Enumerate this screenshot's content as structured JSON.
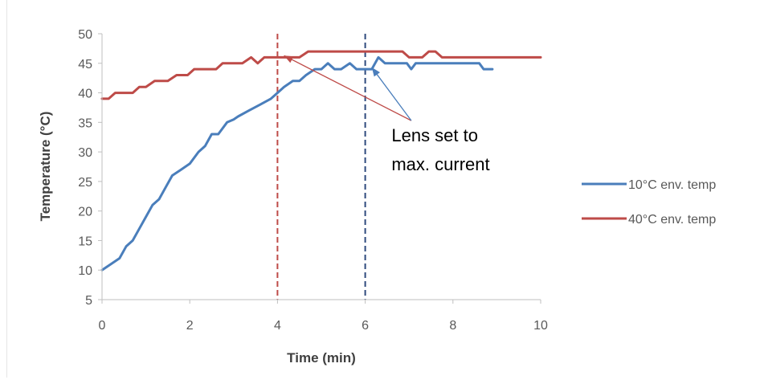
{
  "chart_data": {
    "type": "line",
    "title": "",
    "xlabel": "Time (min)",
    "ylabel": "Temperature (°C)",
    "xlim": [
      0,
      10
    ],
    "ylim": [
      5,
      50
    ],
    "x_ticks": [
      "0",
      "2",
      "4",
      "6",
      "8",
      "10"
    ],
    "y_ticks": [
      "5",
      "10",
      "15",
      "20",
      "25",
      "30",
      "35",
      "40",
      "45",
      "50"
    ],
    "grid": false,
    "legend_position": "right",
    "series": [
      {
        "name": "10°C env. temp",
        "color": "#4a7ebb",
        "x": [
          0,
          0.2,
          0.4,
          0.55,
          0.7,
          0.85,
          1.0,
          1.15,
          1.3,
          1.45,
          1.6,
          1.8,
          2.0,
          2.2,
          2.35,
          2.5,
          2.65,
          2.85,
          3.0,
          3.1,
          3.35,
          3.6,
          3.85,
          4.0,
          4.15,
          4.35,
          4.5,
          4.65,
          4.85,
          5.0,
          5.15,
          5.3,
          5.45,
          5.65,
          5.8,
          5.95,
          6.15,
          6.3,
          6.45,
          6.6,
          6.8,
          6.95,
          7.05,
          7.15,
          7.3,
          7.5,
          8.0,
          8.5,
          8.6,
          8.7,
          8.9
        ],
        "y": [
          10,
          11,
          12,
          14,
          15,
          17,
          19,
          21,
          22,
          24,
          26,
          27,
          28,
          30,
          31,
          33,
          33,
          35,
          35.5,
          36,
          37,
          38,
          39,
          40,
          41,
          42,
          42,
          43,
          44,
          44,
          45,
          44,
          44,
          45,
          44,
          44,
          44,
          46,
          45,
          45,
          45,
          45,
          44,
          45,
          45,
          45,
          45,
          45,
          45,
          44,
          44
        ]
      },
      {
        "name": "40°C env. temp",
        "color": "#be4b48",
        "x": [
          0,
          0.15,
          0.3,
          0.4,
          0.7,
          0.85,
          1.0,
          1.2,
          1.5,
          1.7,
          1.95,
          2.1,
          2.3,
          2.6,
          2.75,
          2.95,
          3.1,
          3.2,
          3.4,
          3.55,
          3.7,
          4.0,
          4.2,
          4.4,
          4.5,
          4.6,
          4.7,
          5.0,
          5.5,
          6.5,
          6.85,
          7.0,
          7.15,
          7.3,
          7.45,
          7.6,
          7.75,
          7.9,
          10.0
        ],
        "y": [
          39,
          39,
          40,
          40,
          40,
          41,
          41,
          42,
          42,
          43,
          43,
          44,
          44,
          44,
          45,
          45,
          45,
          45,
          46,
          45,
          46,
          46,
          46,
          46,
          46,
          46.5,
          47,
          47,
          47,
          47,
          47,
          46,
          46,
          46,
          47,
          47,
          46,
          46,
          46
        ]
      }
    ],
    "vlines": [
      {
        "x": 4,
        "color": "#be4b48",
        "style": "dashed"
      },
      {
        "x": 6,
        "color": "#2e4a7d",
        "style": "dashed"
      }
    ],
    "annotation": {
      "lines": [
        "Lens set to",
        "max. current"
      ],
      "x": 6.6,
      "y": 31.8,
      "arrows": [
        {
          "color": "#be4b48",
          "from": [
            7.05,
            35.3
          ],
          "to": [
            4.15,
            46.3
          ]
        },
        {
          "color": "#4a7ebb",
          "from": [
            7.05,
            35.3
          ],
          "to": [
            6.15,
            44.3
          ]
        }
      ]
    }
  }
}
